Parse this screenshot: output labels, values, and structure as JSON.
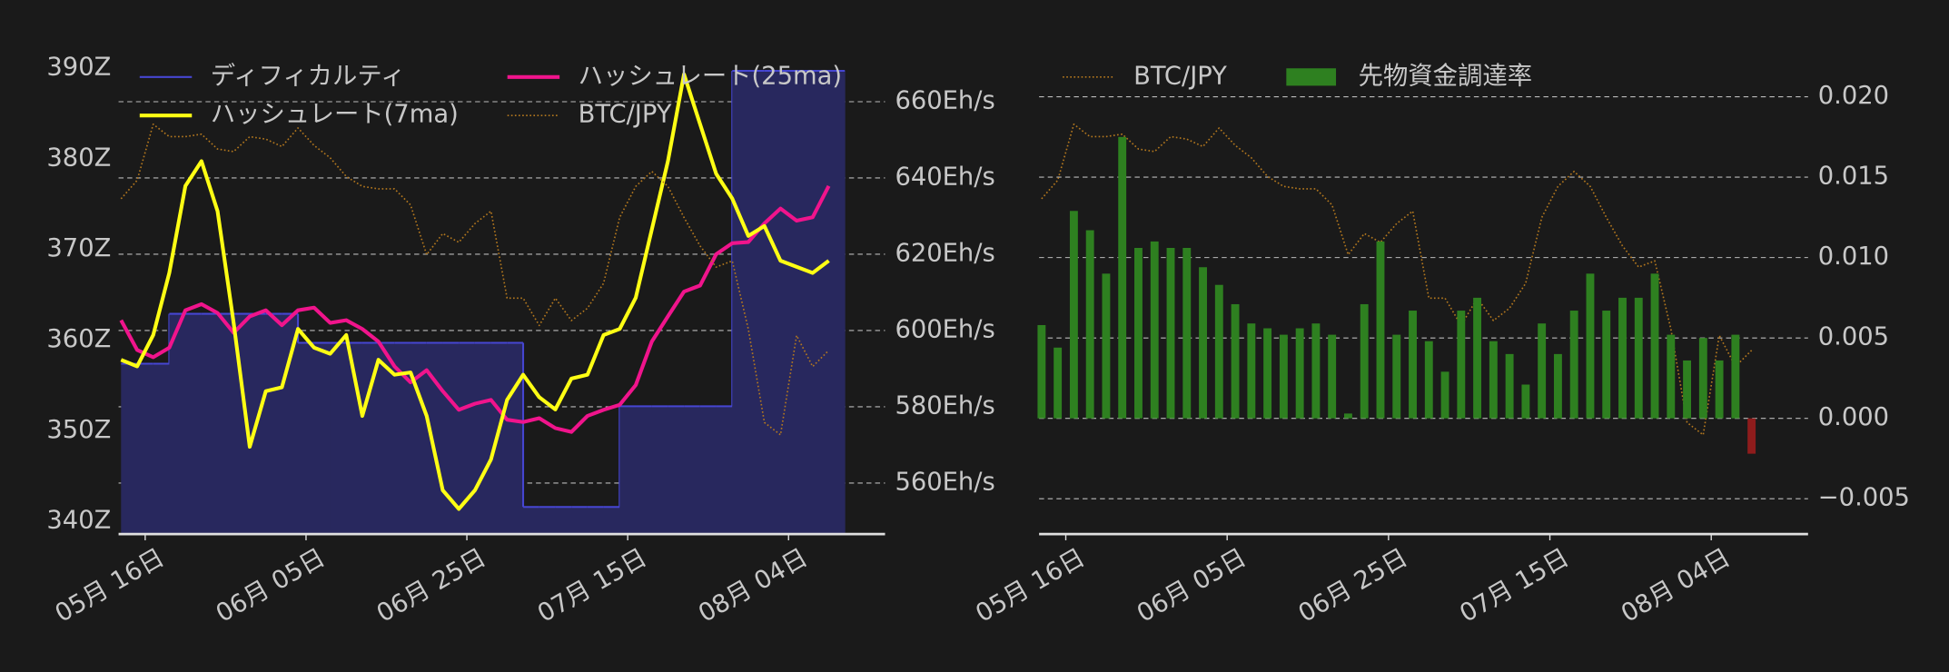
{
  "chart_data": [
    {
      "type": "line",
      "x": [
        "05-13",
        "05-15",
        "05-17",
        "05-19",
        "05-21",
        "05-23",
        "05-25",
        "05-27",
        "05-29",
        "05-31",
        "06-02",
        "06-04",
        "06-06",
        "06-08",
        "06-10",
        "06-12",
        "06-14",
        "06-16",
        "06-18",
        "06-20",
        "06-22",
        "06-24",
        "06-26",
        "06-28",
        "06-30",
        "07-02",
        "07-04",
        "07-06",
        "07-08",
        "07-10",
        "07-12",
        "07-14",
        "07-16",
        "07-18",
        "07-20",
        "07-22",
        "07-24",
        "07-26",
        "07-28",
        "07-30",
        "08-01",
        "08-03",
        "08-05",
        "08-07",
        "08-09"
      ],
      "xlim": [
        "05-13",
        "08-16"
      ],
      "xticks": [
        {
          "value": "05-16",
          "label": "05月 16日"
        },
        {
          "value": "06-05",
          "label": "06月 05日"
        },
        {
          "value": "06-25",
          "label": "06月 25日"
        },
        {
          "value": "07-15",
          "label": "07月 15日"
        },
        {
          "value": "08-04",
          "label": "08月 04日"
        }
      ],
      "ylim": [
        338.6,
        393.4
      ],
      "yticks": [
        {
          "value": 340,
          "label": "340Z"
        },
        {
          "value": 350,
          "label": "350Z"
        },
        {
          "value": 360,
          "label": "360Z"
        },
        {
          "value": 370,
          "label": "370Z"
        },
        {
          "value": 380,
          "label": "380Z"
        },
        {
          "value": 390,
          "label": "390Z"
        }
      ],
      "y2lim": [
        546.6,
        676.9
      ],
      "y2ticks": [
        {
          "value": 560,
          "label": "560Eh/s"
        },
        {
          "value": 580,
          "label": "580Eh/s"
        },
        {
          "value": 600,
          "label": "600Eh/s"
        },
        {
          "value": 620,
          "label": "620Eh/s"
        },
        {
          "value": 640,
          "label": "640Eh/s"
        },
        {
          "value": 660,
          "label": "660Eh/s"
        }
      ],
      "y3lim": [
        6985000,
        11640000
      ],
      "grid": true,
      "grid_axis": "y2",
      "yaxis_position": "left",
      "series": [
        {
          "name": "ディフィカルティ",
          "type": "step-area",
          "color": "#4646d2",
          "fill": "#28285e",
          "axis": "y",
          "values": [
            357.4,
            357.4,
            357.4,
            362.9,
            362.9,
            362.9,
            362.9,
            362.9,
            362.9,
            362.9,
            362.9,
            359.7,
            359.7,
            359.7,
            359.7,
            359.7,
            359.7,
            359.7,
            359.7,
            359.7,
            359.7,
            359.7,
            359.7,
            359.7,
            359.7,
            341.6,
            341.6,
            341.6,
            341.6,
            341.6,
            341.6,
            352.7,
            352.7,
            352.7,
            352.7,
            352.7,
            352.7,
            352.7,
            389.7,
            389.7,
            389.7,
            389.7,
            389.7,
            389.7,
            389.7
          ]
        },
        {
          "name": "ハッシュレート(25ma)",
          "type": "line",
          "color": "#f0148c",
          "axis": "y2",
          "values": [
            602.7,
            594.9,
            593,
            595.5,
            605.3,
            606.9,
            604.6,
            599.4,
            603.7,
            605.3,
            601.4,
            605.3,
            606,
            602,
            602.7,
            600.4,
            597.1,
            590.6,
            586.4,
            589.6,
            584.1,
            579.2,
            580.8,
            581.8,
            576.6,
            576,
            577,
            574.4,
            573.4,
            577.6,
            579.2,
            580.5,
            585.7,
            597.1,
            603.7,
            610.2,
            611.8,
            620,
            622.9,
            623.2,
            628.1,
            632,
            628.8,
            629.7,
            637.9
          ]
        },
        {
          "name": "ハッシュレート(7ma)",
          "type": "line",
          "color": "#ffff14",
          "axis": "y2",
          "values": [
            592.3,
            590.6,
            598.8,
            615.1,
            637.9,
            644.4,
            631.3,
            602,
            569.5,
            584.1,
            585.1,
            600.4,
            595.5,
            593.9,
            598.8,
            577.6,
            592.3,
            588.4,
            589,
            577.6,
            558.1,
            553.2,
            558.1,
            566.2,
            581.8,
            588.4,
            582.5,
            579.3,
            587.4,
            588.4,
            598.8,
            600.4,
            608.6,
            626.5,
            644.4,
            667.2,
            654.1,
            641.1,
            634.6,
            624.8,
            627.4,
            618.3,
            616.7,
            615.1,
            618.3
          ]
        },
        {
          "name": "BTC/JPY",
          "type": "line",
          "style": "dotted",
          "color": "#b4781e",
          "axis": "y3",
          "values": [
            10127000,
            10300000,
            10825000,
            10709000,
            10709000,
            10732000,
            10593000,
            10569000,
            10709000,
            10686000,
            10616000,
            10790000,
            10627000,
            10511000,
            10336000,
            10243000,
            10220000,
            10220000,
            10069000,
            9603000,
            9801000,
            9719000,
            9894000,
            10011000,
            9196000,
            9196000,
            8940000,
            9196000,
            8986000,
            9102000,
            9335000,
            9952000,
            10243000,
            10383000,
            10243000,
            9952000,
            9685000,
            9487000,
            9545000,
            8905000,
            8031000,
            7915000,
            8846000,
            8555000,
            8707000
          ]
        }
      ]
    },
    {
      "type": "bar",
      "x": [
        "05-13",
        "05-15",
        "05-17",
        "05-19",
        "05-21",
        "05-23",
        "05-25",
        "05-27",
        "05-29",
        "05-31",
        "06-02",
        "06-04",
        "06-06",
        "06-08",
        "06-10",
        "06-12",
        "06-14",
        "06-16",
        "06-18",
        "06-20",
        "06-22",
        "06-24",
        "06-26",
        "06-28",
        "06-30",
        "07-02",
        "07-04",
        "07-06",
        "07-08",
        "07-10",
        "07-12",
        "07-14",
        "07-16",
        "07-18",
        "07-20",
        "07-22",
        "07-24",
        "07-26",
        "07-28",
        "07-30",
        "08-01",
        "08-03",
        "08-05",
        "08-07",
        "08-09"
      ],
      "xlim": [
        "05-13",
        "08-16"
      ],
      "xticks": [
        {
          "value": "05-16",
          "label": "05月 16日"
        },
        {
          "value": "06-05",
          "label": "06月 05日"
        },
        {
          "value": "06-25",
          "label": "06月 25日"
        },
        {
          "value": "07-15",
          "label": "07月 15日"
        },
        {
          "value": "08-04",
          "label": "08月 04日"
        }
      ],
      "ylim": [
        -0.0072,
        0.0237
      ],
      "yticks": [
        {
          "value": -0.005,
          "label": "−0.005"
        },
        {
          "value": 0,
          "label": "0.000"
        },
        {
          "value": 0.005,
          "label": "0.005"
        },
        {
          "value": 0.01,
          "label": "0.010"
        },
        {
          "value": 0.015,
          "label": "0.015"
        },
        {
          "value": 0.02,
          "label": "0.020"
        }
      ],
      "y3lim": [
        6985000,
        11640000
      ],
      "grid": true,
      "grid_axis": "y",
      "yaxis_position": "right",
      "series": [
        {
          "name": "BTC/JPY",
          "type": "line",
          "style": "dotted",
          "color": "#b4781e",
          "axis": "y3",
          "values": [
            10127000,
            10300000,
            10825000,
            10709000,
            10709000,
            10732000,
            10593000,
            10569000,
            10709000,
            10686000,
            10616000,
            10790000,
            10627000,
            10511000,
            10336000,
            10243000,
            10220000,
            10220000,
            10069000,
            9603000,
            9801000,
            9719000,
            9894000,
            10011000,
            9196000,
            9196000,
            8940000,
            9196000,
            8986000,
            9102000,
            9335000,
            9952000,
            10243000,
            10383000,
            10243000,
            9952000,
            9685000,
            9487000,
            9545000,
            8905000,
            8031000,
            7915000,
            8846000,
            8555000,
            8707000
          ]
        },
        {
          "name": "先物資金調達率",
          "type": "bar",
          "color": "#2e8020",
          "negative_color": "#8e1c1c",
          "axis": "y",
          "values": [
            0.0058,
            0.0044,
            0.0129,
            0.0117,
            0.009,
            0.0175,
            0.0106,
            0.011,
            0.0106,
            0.0106,
            0.0094,
            0.0083,
            0.0071,
            0.0059,
            0.0056,
            0.0052,
            0.0056,
            0.0059,
            0.0052,
            0.0003,
            0.0071,
            0.011,
            0.0052,
            0.0067,
            0.0048,
            0.0029,
            0.0067,
            0.0075,
            0.0048,
            0.004,
            0.0021,
            0.0059,
            0.004,
            0.0067,
            0.009,
            0.0067,
            0.0075,
            0.0075,
            0.009,
            0.0052,
            0.0036,
            0.005,
            0.0036,
            0.0052,
            -0.0022
          ]
        }
      ]
    }
  ]
}
